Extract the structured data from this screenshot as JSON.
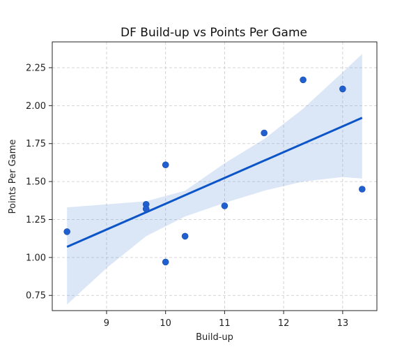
{
  "chart_data": {
    "type": "scatter",
    "title": "DF Build-up vs Points Per Game",
    "xlabel": "Build-up",
    "ylabel": "Points Per Game",
    "xlim": [
      8.08,
      13.58
    ],
    "ylim": [
      0.65,
      2.42
    ],
    "xticks": [
      9,
      10,
      11,
      12,
      13
    ],
    "xtick_labels": [
      "9",
      "10",
      "11",
      "12",
      "13"
    ],
    "yticks": [
      0.75,
      1.0,
      1.25,
      1.5,
      1.75,
      2.0,
      2.25
    ],
    "ytick_labels": [
      "0.75",
      "1.00",
      "1.25",
      "1.50",
      "1.75",
      "2.00",
      "2.25"
    ],
    "grid": true,
    "points": [
      {
        "x": 8.33,
        "y": 1.17
      },
      {
        "x": 9.67,
        "y": 1.35
      },
      {
        "x": 9.67,
        "y": 1.32
      },
      {
        "x": 10.0,
        "y": 1.61
      },
      {
        "x": 10.0,
        "y": 0.97
      },
      {
        "x": 10.33,
        "y": 1.14
      },
      {
        "x": 11.0,
        "y": 1.34
      },
      {
        "x": 11.67,
        "y": 1.82
      },
      {
        "x": 12.33,
        "y": 2.17
      },
      {
        "x": 13.0,
        "y": 2.11
      },
      {
        "x": 13.33,
        "y": 1.45
      }
    ],
    "regression": {
      "x": [
        8.33,
        13.33
      ],
      "y": [
        1.07,
        1.92
      ]
    },
    "confidence_band": {
      "x": [
        8.33,
        9.0,
        9.67,
        10.33,
        11.0,
        11.67,
        12.33,
        13.0,
        13.33
      ],
      "lower": [
        0.69,
        0.93,
        1.14,
        1.27,
        1.36,
        1.44,
        1.5,
        1.53,
        1.52
      ],
      "upper": [
        1.33,
        1.35,
        1.37,
        1.44,
        1.62,
        1.78,
        1.98,
        2.22,
        2.34
      ]
    },
    "colors": {
      "points": "#1f5fcf",
      "line": "#0b55c8",
      "band": "#6f9be0"
    }
  }
}
